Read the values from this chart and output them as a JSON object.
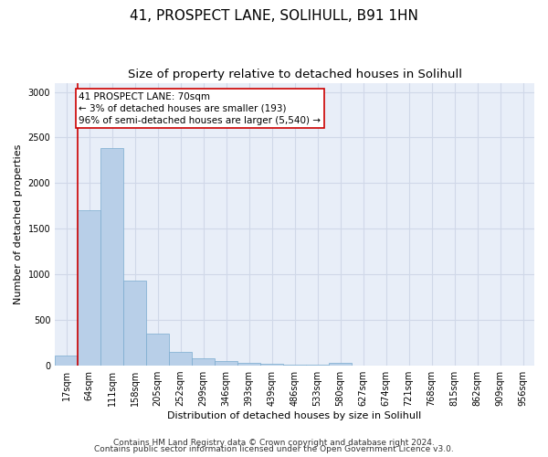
{
  "title1": "41, PROSPECT LANE, SOLIHULL, B91 1HN",
  "title2": "Size of property relative to detached houses in Solihull",
  "xlabel": "Distribution of detached houses by size in Solihull",
  "ylabel": "Number of detached properties",
  "categories": [
    "17sqm",
    "64sqm",
    "111sqm",
    "158sqm",
    "205sqm",
    "252sqm",
    "299sqm",
    "346sqm",
    "393sqm",
    "439sqm",
    "486sqm",
    "533sqm",
    "580sqm",
    "627sqm",
    "674sqm",
    "721sqm",
    "768sqm",
    "815sqm",
    "862sqm",
    "909sqm",
    "956sqm"
  ],
  "values": [
    110,
    1700,
    2380,
    930,
    355,
    155,
    80,
    55,
    35,
    18,
    15,
    15,
    28,
    5,
    3,
    2,
    1,
    1,
    1,
    1,
    1
  ],
  "bar_color": "#b8cfe8",
  "bar_edge_color": "#7aabcf",
  "annotation_box_text": "41 PROSPECT LANE: 70sqm\n← 3% of detached houses are smaller (193)\n96% of semi-detached houses are larger (5,540) →",
  "annotation_box_color": "#ffffff",
  "annotation_box_edge_color": "#cc0000",
  "vline_color": "#cc0000",
  "vline_x": 0.5,
  "ylim": [
    0,
    3100
  ],
  "yticks": [
    0,
    500,
    1000,
    1500,
    2000,
    2500,
    3000
  ],
  "grid_color": "#d0d8e8",
  "bg_color": "#e8eef8",
  "footer1": "Contains HM Land Registry data © Crown copyright and database right 2024.",
  "footer2": "Contains public sector information licensed under the Open Government Licence v3.0.",
  "title1_fontsize": 11,
  "title2_fontsize": 9.5,
  "tick_fontsize": 7,
  "label_fontsize": 8,
  "footer_fontsize": 6.5,
  "annotation_fontsize": 7.5
}
